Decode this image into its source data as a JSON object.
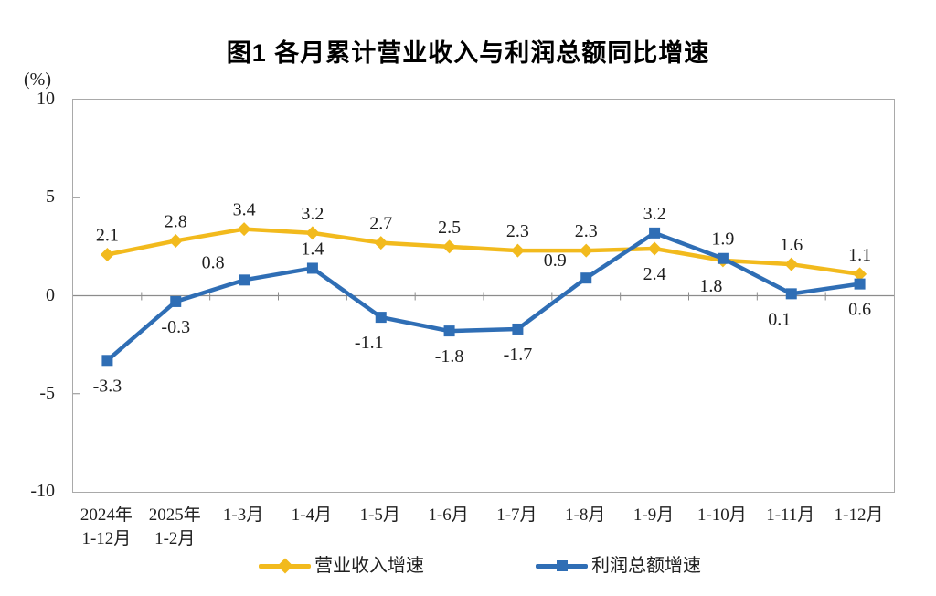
{
  "title": "图1 各月累计营业收入与利润总额同比增速",
  "y_axis": {
    "unit": "(%)",
    "ticks": [
      "10",
      "5",
      "0",
      "-5",
      "-10"
    ]
  },
  "chart_data": {
    "type": "line",
    "categories": [
      [
        "2024年",
        "1-12月"
      ],
      [
        "2025年",
        "1-2月"
      ],
      [
        "1-3月"
      ],
      [
        "1-4月"
      ],
      [
        "1-5月"
      ],
      [
        "1-6月"
      ],
      [
        "1-7月"
      ],
      [
        "1-8月"
      ],
      [
        "1-9月"
      ],
      [
        "1-10月"
      ],
      [
        "1-11月"
      ],
      [
        "1-12月"
      ]
    ],
    "series": [
      {
        "id": "revenue",
        "name": "营业收入增速",
        "color": "#F2BA1D",
        "marker": "diamond",
        "values": [
          2.1,
          2.8,
          3.4,
          3.2,
          2.7,
          2.5,
          2.3,
          2.3,
          2.4,
          1.8,
          1.6,
          1.1
        ],
        "label_pos": [
          "above",
          "above",
          "above",
          "above",
          "above",
          "above",
          "above",
          "above",
          "below",
          "below-left",
          "above",
          "above"
        ]
      },
      {
        "id": "profit",
        "name": "利润总额增速",
        "color": "#2F6EB5",
        "marker": "square",
        "values": [
          -3.3,
          -0.3,
          0.8,
          1.4,
          -1.1,
          -1.8,
          -1.7,
          0.9,
          3.2,
          1.9,
          0.1,
          0.6
        ],
        "label_pos": [
          "below",
          "below",
          "above-left",
          "above",
          "below-left",
          "below",
          "below",
          "above-left",
          "above",
          "above",
          "below-left",
          "below"
        ]
      }
    ],
    "ylim": [
      -10,
      10
    ],
    "yticks": [
      10,
      5,
      0,
      -5,
      -10
    ],
    "grid": false,
    "legend_position": "bottom",
    "axis_color": "#8c8c8c",
    "label_text_color": "#1f1f1f"
  }
}
